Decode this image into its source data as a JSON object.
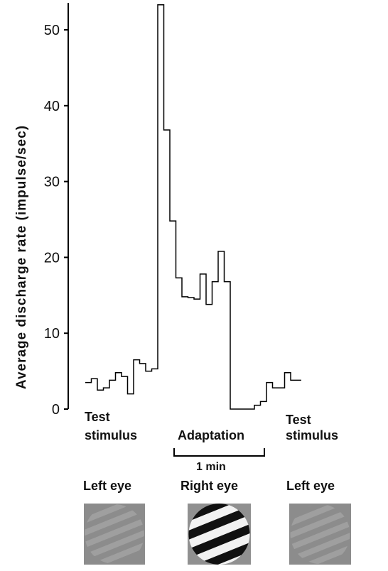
{
  "chart_data": {
    "type": "line",
    "ylabel": "Average discharge rate (impulse/sec)",
    "ylim": [
      0,
      54
    ],
    "y_ticks": [
      0,
      10,
      20,
      30,
      40,
      50
    ],
    "y_tick_labels": [
      "0",
      "10",
      "20",
      "30",
      "40",
      "50"
    ],
    "grid": false,
    "series": [
      {
        "step": "post",
        "x": [
          0,
          0.2,
          0.4,
          0.6,
          0.8,
          1.0,
          1.2,
          1.4,
          1.6,
          1.8,
          2.0,
          2.2,
          2.4,
          2.6,
          2.8,
          3.0,
          3.2,
          3.4,
          3.6,
          3.8,
          4.0,
          4.2,
          4.4,
          4.6,
          4.8,
          5.0,
          5.2,
          5.4,
          5.6,
          5.8,
          6.0,
          6.2,
          6.4,
          6.6,
          6.8,
          7.0
        ],
        "y": [
          3.5,
          4.0,
          2.5,
          2.8,
          3.8,
          4.8,
          4.3,
          2.0,
          6.5,
          6.0,
          5.0,
          5.3,
          53.3,
          36.8,
          24.8,
          17.3,
          14.8,
          14.7,
          14.5,
          17.8,
          13.8,
          16.8,
          20.8,
          16.8,
          0.0,
          0.0,
          0.0,
          0.0,
          0.5,
          1.0,
          3.5,
          2.8,
          2.8,
          4.8,
          3.8,
          3.8
        ]
      }
    ],
    "annotations": {
      "scale_bar": "1 min",
      "phases": [
        {
          "label": "Test\nstimulus",
          "eye": "Left eye",
          "stimulus": "low-contrast grating"
        },
        {
          "label": "Adaptation",
          "eye": "Right eye",
          "stimulus": "high-contrast grating"
        },
        {
          "label": "Test\nstimulus",
          "eye": "Left eye",
          "stimulus": "low-contrast grating"
        }
      ]
    }
  }
}
